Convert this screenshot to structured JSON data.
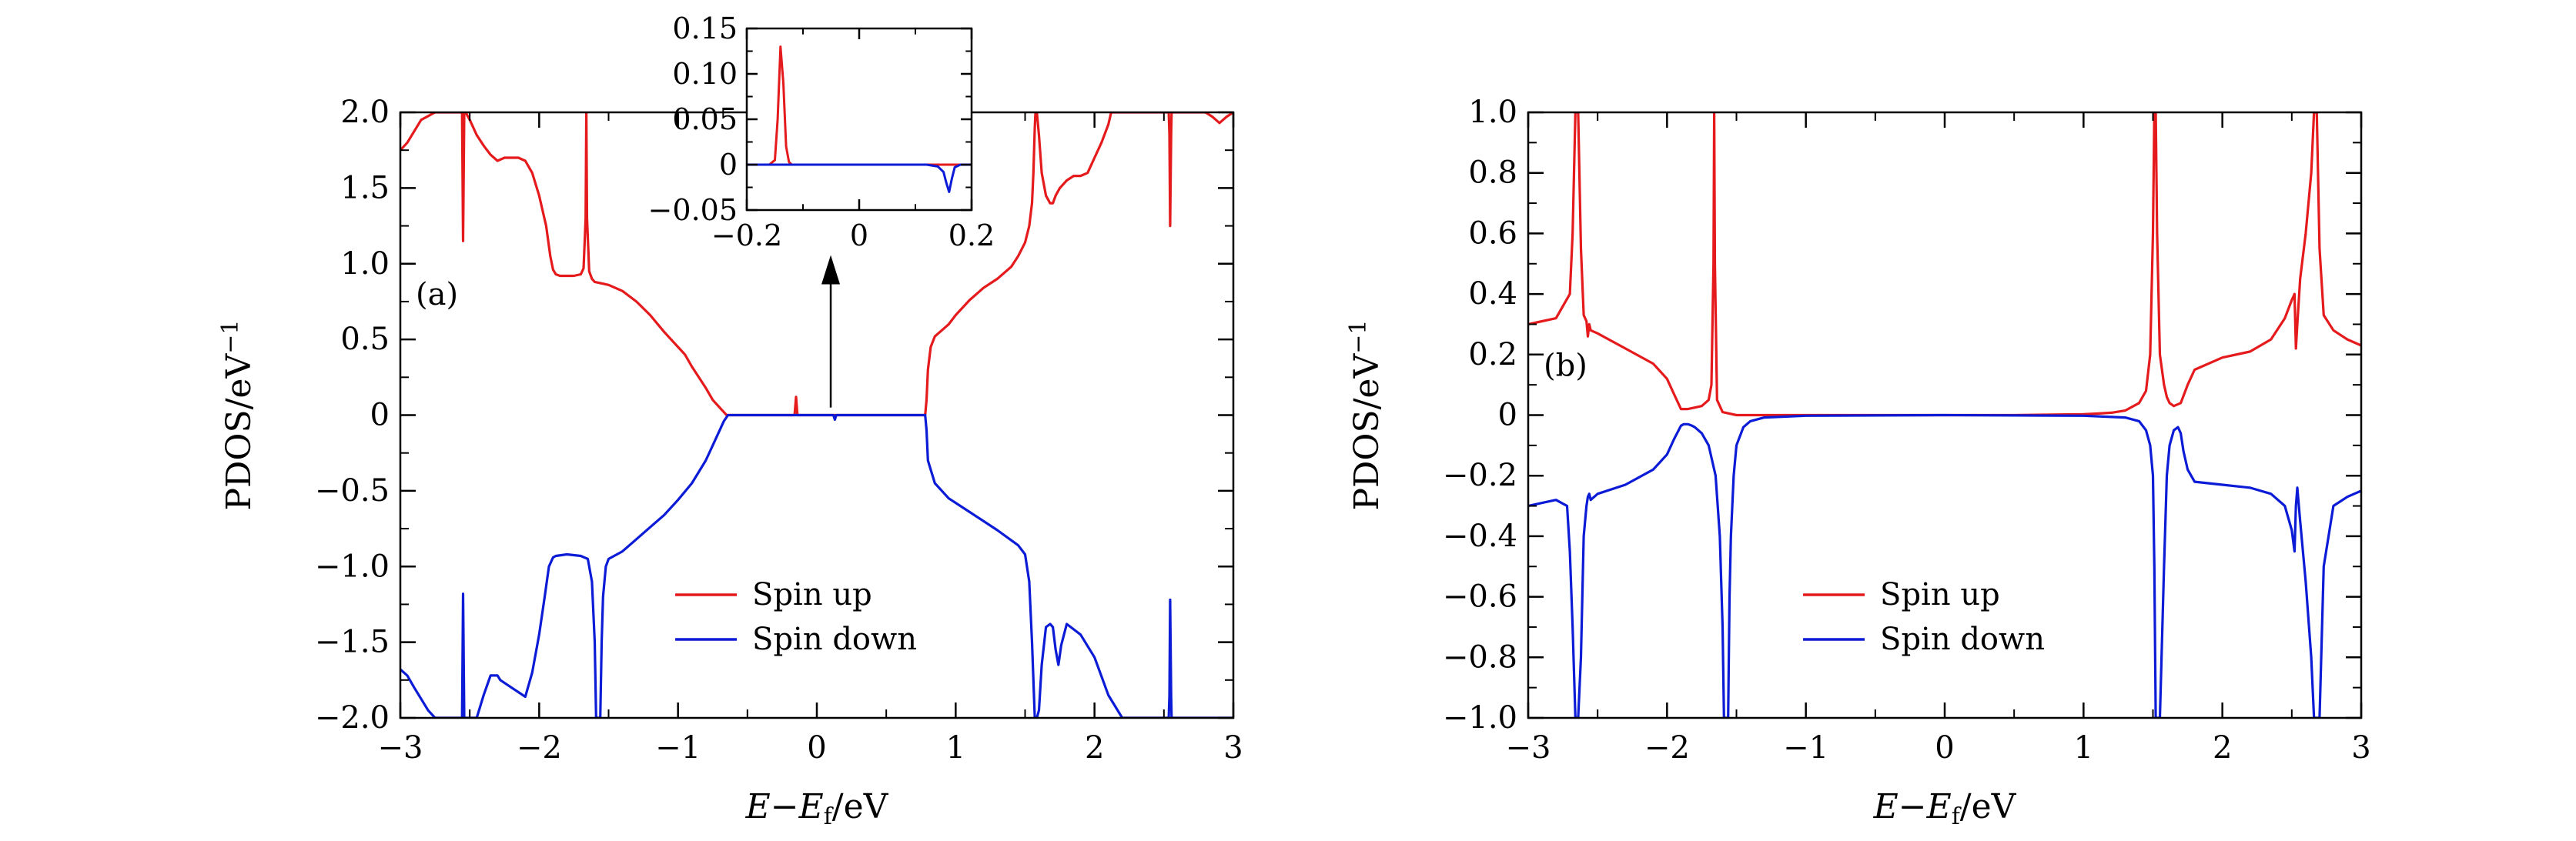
{
  "figure": {
    "legend": {
      "up": "Spin up",
      "down": "Spin down"
    },
    "colors": {
      "up": "#e41a1c",
      "down": "#0b1bd6"
    }
  },
  "chart_data": [
    {
      "id": "a",
      "type": "line",
      "panel_label": "(a)",
      "xlabel": "E−Ef/eV",
      "ylabel": "PDOS/eV−1",
      "xlim": [
        -3,
        3
      ],
      "ylim": [
        -2,
        2
      ],
      "xticks": [
        -3,
        -2,
        -1,
        0,
        1,
        2,
        3
      ],
      "xtick_labels": [
        "−3",
        "−2",
        "−1",
        "0",
        "1",
        "2",
        "3"
      ],
      "yticks": [
        -2,
        -1.5,
        -1,
        -0.5,
        0,
        0.5,
        1,
        1.5,
        2
      ],
      "ytick_labels": [
        "−2.0",
        "−1.5",
        "−1.0",
        "−0.5",
        "0",
        "0.5",
        "1.0",
        "1.5",
        "2.0"
      ],
      "legend_position": "bottom-right",
      "series": [
        {
          "name": "Spin up",
          "x": [
            -3.0,
            -2.95,
            -2.85,
            -2.75,
            -2.62,
            -2.6,
            -2.57,
            -2.555,
            -2.548,
            -2.54,
            -2.53,
            -2.5,
            -2.45,
            -2.4,
            -2.35,
            -2.3,
            -2.25,
            -2.15,
            -2.1,
            -2.05,
            -2.0,
            -1.95,
            -1.92,
            -1.9,
            -1.88,
            -1.85,
            -1.8,
            -1.75,
            -1.7,
            -1.68,
            -1.665,
            -1.66,
            -1.655,
            -1.64,
            -1.62,
            -1.6,
            -1.55,
            -1.5,
            -1.4,
            -1.3,
            -1.2,
            -1.1,
            -1.0,
            -0.95,
            -0.9,
            -0.85,
            -0.8,
            -0.75,
            -0.7,
            -0.67,
            -0.65,
            -0.64,
            -0.6,
            -0.4,
            -0.2,
            -0.16,
            -0.15,
            -0.14,
            -0.13,
            -0.12,
            0.0,
            0.2,
            0.4,
            0.6,
            0.78,
            0.79,
            0.8,
            0.82,
            0.85,
            0.9,
            0.95,
            1.0,
            1.1,
            1.2,
            1.3,
            1.4,
            1.45,
            1.5,
            1.53,
            1.55,
            1.56,
            1.57,
            1.575,
            1.585,
            1.6,
            1.62,
            1.65,
            1.68,
            1.7,
            1.72,
            1.75,
            1.8,
            1.85,
            1.9,
            1.95,
            2.0,
            2.05,
            2.1,
            2.12,
            2.4,
            2.5,
            2.535,
            2.54,
            2.545,
            2.552,
            2.555,
            2.56,
            2.57,
            2.6,
            2.7,
            2.8,
            2.85,
            2.9,
            2.95,
            3.0
          ],
          "y": [
            1.75,
            1.8,
            1.95,
            2.0,
            2.0,
            2.0,
            2.0,
            2.0,
            1.15,
            2.0,
            2.0,
            1.95,
            1.85,
            1.78,
            1.72,
            1.68,
            1.7,
            1.7,
            1.68,
            1.6,
            1.45,
            1.25,
            1.05,
            0.96,
            0.93,
            0.92,
            0.92,
            0.92,
            0.93,
            0.97,
            1.3,
            2.0,
            1.3,
            0.95,
            0.9,
            0.88,
            0.87,
            0.86,
            0.82,
            0.75,
            0.66,
            0.55,
            0.45,
            0.4,
            0.32,
            0.25,
            0.18,
            0.1,
            0.05,
            0.02,
            0.0,
            0.0,
            0.0,
            0.0,
            0.0,
            0.0,
            0.12,
            0.0,
            0.0,
            0.0,
            0.0,
            0.0,
            0.0,
            0.0,
            0.0,
            0.1,
            0.3,
            0.45,
            0.52,
            0.56,
            0.6,
            0.66,
            0.76,
            0.84,
            0.9,
            0.98,
            1.05,
            1.14,
            1.25,
            1.4,
            1.6,
            1.9,
            2.0,
            2.0,
            1.85,
            1.6,
            1.45,
            1.4,
            1.4,
            1.45,
            1.5,
            1.55,
            1.58,
            1.58,
            1.6,
            1.7,
            1.8,
            1.92,
            2.0,
            2.0,
            2.0,
            2.0,
            1.85,
            1.25,
            1.85,
            2.0,
            2.0,
            2.0,
            2.0,
            2.0,
            2.0,
            1.97,
            1.93,
            1.97,
            2.0
          ]
        },
        {
          "name": "Spin down",
          "x": [
            -3.0,
            -2.95,
            -2.9,
            -2.8,
            -2.75,
            -2.6,
            -2.57,
            -2.555,
            -2.548,
            -2.54,
            -2.53,
            -2.5,
            -2.45,
            -2.4,
            -2.35,
            -2.3,
            -2.28,
            -2.2,
            -2.1,
            -2.05,
            -2.0,
            -1.96,
            -1.93,
            -1.9,
            -1.88,
            -1.8,
            -1.7,
            -1.65,
            -1.62,
            -1.6,
            -1.59,
            -1.58,
            -1.56,
            -1.55,
            -1.54,
            -1.52,
            -1.5,
            -1.4,
            -1.3,
            -1.2,
            -1.1,
            -1.0,
            -0.9,
            -0.8,
            -0.75,
            -0.7,
            -0.67,
            -0.64,
            -0.6,
            -0.4,
            -0.2,
            0.0,
            0.1,
            0.12,
            0.13,
            0.14,
            0.16,
            0.2,
            0.4,
            0.6,
            0.78,
            0.79,
            0.8,
            0.85,
            0.95,
            1.1,
            1.3,
            1.45,
            1.5,
            1.53,
            1.55,
            1.57,
            1.585,
            1.6,
            1.62,
            1.65,
            1.68,
            1.7,
            1.72,
            1.74,
            1.76,
            1.8,
            1.9,
            2.0,
            2.1,
            2.2,
            2.4,
            2.5,
            2.535,
            2.54,
            2.545,
            2.552,
            2.555,
            2.56,
            2.57,
            2.6,
            2.7,
            2.8,
            2.9,
            3.0
          ],
          "y": [
            -1.68,
            -1.72,
            -1.8,
            -1.95,
            -2.0,
            -2.0,
            -2.0,
            -2.0,
            -1.18,
            -2.0,
            -2.0,
            -2.0,
            -2.0,
            -1.85,
            -1.72,
            -1.72,
            -1.75,
            -1.8,
            -1.86,
            -1.7,
            -1.45,
            -1.2,
            -1.0,
            -0.94,
            -0.93,
            -0.92,
            -0.93,
            -0.95,
            -1.1,
            -1.5,
            -2.0,
            -2.0,
            -2.0,
            -1.5,
            -1.2,
            -1.0,
            -0.95,
            -0.9,
            -0.82,
            -0.74,
            -0.66,
            -0.56,
            -0.45,
            -0.3,
            -0.2,
            -0.1,
            -0.04,
            0.0,
            0.0,
            0.0,
            0.0,
            0.0,
            0.0,
            0.0,
            -0.03,
            0.0,
            0.0,
            0.0,
            0.0,
            0.0,
            0.0,
            -0.1,
            -0.3,
            -0.45,
            -0.55,
            -0.64,
            -0.76,
            -0.86,
            -0.92,
            -1.1,
            -1.5,
            -2.0,
            -2.0,
            -1.95,
            -1.65,
            -1.4,
            -1.38,
            -1.4,
            -1.55,
            -1.65,
            -1.52,
            -1.38,
            -1.45,
            -1.6,
            -1.85,
            -2.0,
            -2.0,
            -2.0,
            -2.0,
            -1.85,
            -1.22,
            -1.85,
            -2.0,
            -2.0,
            -2.0,
            -2.0,
            -2.0,
            -2.0,
            -2.0,
            -2.0
          ]
        }
      ]
    },
    {
      "id": "a-inset",
      "type": "line",
      "panel_label": "",
      "xlabel": "",
      "ylabel": "",
      "xlim": [
        -0.2,
        0.2
      ],
      "ylim": [
        -0.05,
        0.15
      ],
      "xticks": [
        -0.2,
        0,
        0.2
      ],
      "xtick_labels": [
        "−0.2",
        "0",
        "0.2"
      ],
      "yticks": [
        -0.05,
        0,
        0.05,
        0.1,
        0.15
      ],
      "ytick_labels": [
        "−0.05",
        "0",
        "0.05",
        "0.10",
        "0.15"
      ],
      "series": [
        {
          "name": "Spin up",
          "x": [
            -0.2,
            -0.16,
            -0.15,
            -0.145,
            -0.14,
            -0.135,
            -0.13,
            -0.125,
            -0.12,
            -0.1,
            0.2
          ],
          "y": [
            0.0,
            0.0,
            0.005,
            0.05,
            0.13,
            0.09,
            0.02,
            0.003,
            0.0,
            0.0,
            0.0
          ]
        },
        {
          "name": "Spin down",
          "x": [
            -0.2,
            0.12,
            0.14,
            0.15,
            0.155,
            0.16,
            0.165,
            0.17,
            0.18,
            0.2
          ],
          "y": [
            0.0,
            0.0,
            -0.002,
            -0.008,
            -0.02,
            -0.03,
            -0.015,
            -0.003,
            0.0,
            0.0
          ]
        }
      ]
    },
    {
      "id": "b",
      "type": "line",
      "panel_label": "(b)",
      "xlabel": "E−Ef/eV",
      "ylabel": "PDOS/eV−1",
      "xlim": [
        -3,
        3
      ],
      "ylim": [
        -1,
        1
      ],
      "xticks": [
        -3,
        -2,
        -1,
        0,
        1,
        2,
        3
      ],
      "xtick_labels": [
        "−3",
        "−2",
        "−1",
        "0",
        "1",
        "2",
        "3"
      ],
      "yticks": [
        -1,
        -0.8,
        -0.6,
        -0.4,
        -0.2,
        0,
        0.2,
        0.4,
        0.6,
        0.8,
        1
      ],
      "ytick_labels": [
        "−1.0",
        "−0.8",
        "−0.6",
        "−0.4",
        "−0.2",
        "0",
        "0.2",
        "0.4",
        "0.6",
        "0.8",
        "1.0"
      ],
      "legend_position": "bottom-right",
      "series": [
        {
          "name": "Spin up",
          "x": [
            -3.0,
            -2.9,
            -2.8,
            -2.7,
            -2.68,
            -2.66,
            -2.65,
            -2.64,
            -2.62,
            -2.6,
            -2.58,
            -2.57,
            -2.56,
            -2.55,
            -2.5,
            -2.3,
            -2.1,
            -2.0,
            -1.95,
            -1.9,
            -1.88,
            -1.85,
            -1.8,
            -1.75,
            -1.7,
            -1.68,
            -1.665,
            -1.66,
            -1.655,
            -1.64,
            -1.6,
            -1.5,
            -1.0,
            0.0,
            0.5,
            1.0,
            1.1,
            1.2,
            1.3,
            1.4,
            1.45,
            1.48,
            1.5,
            1.51,
            1.52,
            1.53,
            1.55,
            1.58,
            1.6,
            1.62,
            1.65,
            1.7,
            1.75,
            1.8,
            2.0,
            2.2,
            2.35,
            2.45,
            2.5,
            2.52,
            2.53,
            2.54,
            2.56,
            2.6,
            2.64,
            2.66,
            2.67,
            2.68,
            2.7,
            2.73,
            2.8,
            2.9,
            3.0
          ],
          "y": [
            0.3,
            0.31,
            0.32,
            0.4,
            0.6,
            1.0,
            1.0,
            1.0,
            0.55,
            0.33,
            0.31,
            0.26,
            0.3,
            0.28,
            0.27,
            0.22,
            0.17,
            0.12,
            0.07,
            0.02,
            0.02,
            0.02,
            0.025,
            0.03,
            0.05,
            0.1,
            0.5,
            1.0,
            0.5,
            0.05,
            0.01,
            0.0,
            0.0,
            0.0,
            0.0,
            0.003,
            0.005,
            0.008,
            0.015,
            0.04,
            0.08,
            0.2,
            0.6,
            1.0,
            1.0,
            0.6,
            0.2,
            0.1,
            0.06,
            0.04,
            0.03,
            0.04,
            0.1,
            0.15,
            0.19,
            0.21,
            0.25,
            0.32,
            0.38,
            0.4,
            0.22,
            0.3,
            0.45,
            0.6,
            0.8,
            1.0,
            1.0,
            1.0,
            0.55,
            0.33,
            0.28,
            0.25,
            0.23
          ]
        },
        {
          "name": "Spin down",
          "x": [
            -3.0,
            -2.9,
            -2.8,
            -2.72,
            -2.7,
            -2.68,
            -2.66,
            -2.65,
            -2.64,
            -2.62,
            -2.6,
            -2.58,
            -2.57,
            -2.56,
            -2.55,
            -2.5,
            -2.3,
            -2.1,
            -2.0,
            -1.95,
            -1.9,
            -1.88,
            -1.85,
            -1.82,
            -1.8,
            -1.75,
            -1.7,
            -1.65,
            -1.62,
            -1.6,
            -1.59,
            -1.58,
            -1.57,
            -1.565,
            -1.56,
            -1.55,
            -1.54,
            -1.52,
            -1.5,
            -1.45,
            -1.4,
            -1.3,
            -1.0,
            0.0,
            1.0,
            1.3,
            1.4,
            1.45,
            1.48,
            1.5,
            1.51,
            1.52,
            1.53,
            1.55,
            1.58,
            1.6,
            1.62,
            1.65,
            1.68,
            1.7,
            1.72,
            1.75,
            1.8,
            2.0,
            2.2,
            2.35,
            2.45,
            2.5,
            2.52,
            2.53,
            2.54,
            2.56,
            2.6,
            2.64,
            2.66,
            2.67,
            2.68,
            2.7,
            2.73,
            2.8,
            2.9,
            3.0
          ],
          "y": [
            -0.3,
            -0.29,
            -0.28,
            -0.3,
            -0.45,
            -0.7,
            -1.0,
            -1.0,
            -1.0,
            -0.8,
            -0.4,
            -0.3,
            -0.27,
            -0.26,
            -0.28,
            -0.26,
            -0.23,
            -0.18,
            -0.13,
            -0.08,
            -0.035,
            -0.03,
            -0.03,
            -0.035,
            -0.04,
            -0.06,
            -0.1,
            -0.2,
            -0.4,
            -0.7,
            -1.0,
            -1.0,
            -1.0,
            -1.0,
            -1.0,
            -0.6,
            -0.4,
            -0.2,
            -0.1,
            -0.04,
            -0.02,
            -0.008,
            -0.002,
            0.0,
            -0.002,
            -0.008,
            -0.02,
            -0.05,
            -0.1,
            -0.2,
            -0.5,
            -1.0,
            -1.0,
            -1.0,
            -0.5,
            -0.2,
            -0.1,
            -0.05,
            -0.04,
            -0.06,
            -0.12,
            -0.18,
            -0.22,
            -0.23,
            -0.24,
            -0.26,
            -0.3,
            -0.38,
            -0.45,
            -0.3,
            -0.24,
            -0.35,
            -0.55,
            -0.8,
            -1.0,
            -1.0,
            -1.0,
            -1.0,
            -0.5,
            -0.3,
            -0.27,
            -0.25
          ]
        }
      ]
    }
  ]
}
